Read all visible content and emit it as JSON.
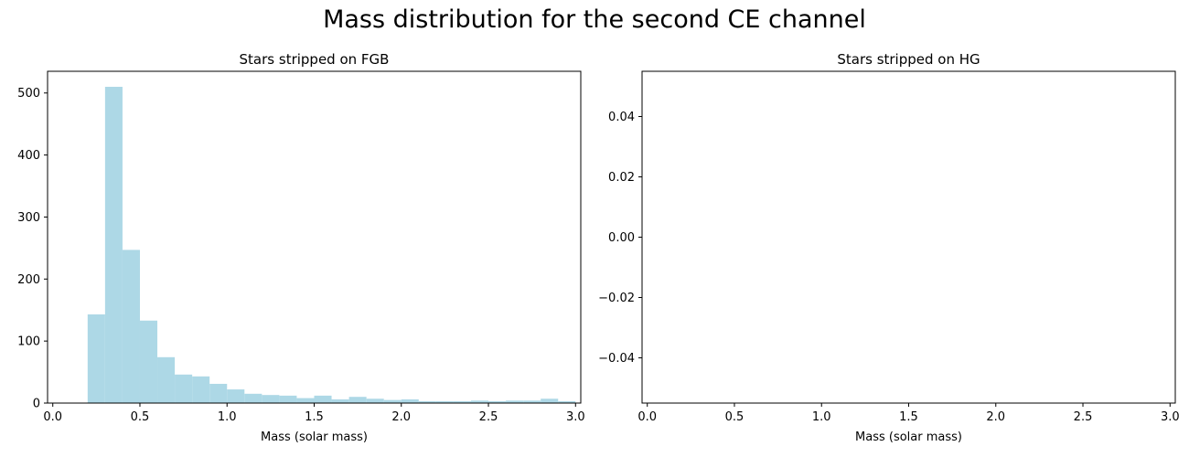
{
  "figure": {
    "title": "Mass distribution for the second CE channel"
  },
  "chart_data": [
    {
      "type": "bar",
      "title": "Stars stripped on FGB",
      "xlabel": "Mass (solar mass)",
      "ylabel": "",
      "xlim": [
        -0.03,
        3.03
      ],
      "ylim": [
        0,
        535
      ],
      "xticks": [
        "0.0",
        "0.5",
        "1.0",
        "1.5",
        "2.0",
        "2.5",
        "3.0"
      ],
      "yticks": [
        "0",
        "100",
        "200",
        "300",
        "400",
        "500"
      ],
      "bar_color": "#add8e6",
      "bin_edges": [
        0.2,
        0.3,
        0.4,
        0.5,
        0.6,
        0.7,
        0.8,
        0.9,
        1.0,
        1.1,
        1.2,
        1.3,
        1.4,
        1.5,
        1.6,
        1.7,
        1.8,
        1.9,
        2.0,
        2.1,
        2.2,
        2.3,
        2.4,
        2.5,
        2.6,
        2.7,
        2.8,
        2.9,
        3.0
      ],
      "values": [
        143,
        510,
        247,
        133,
        74,
        46,
        43,
        31,
        22,
        15,
        13,
        12,
        8,
        12,
        6,
        10,
        7,
        5,
        6,
        3,
        3,
        3,
        4,
        3,
        4,
        4,
        7,
        3
      ],
      "grid": false
    },
    {
      "type": "bar",
      "title": "Stars stripped on HG",
      "xlabel": "Mass (solar mass)",
      "ylabel": "",
      "xlim": [
        -0.03,
        3.03
      ],
      "ylim": [
        -0.055,
        0.055
      ],
      "xticks": [
        "0.0",
        "0.5",
        "1.0",
        "1.5",
        "2.0",
        "2.5",
        "3.0"
      ],
      "yticks": [
        "−0.04",
        "−0.02",
        "0.00",
        "0.02",
        "0.04"
      ],
      "bar_color": "#add8e6",
      "bin_edges": [],
      "values": [],
      "grid": false
    }
  ]
}
